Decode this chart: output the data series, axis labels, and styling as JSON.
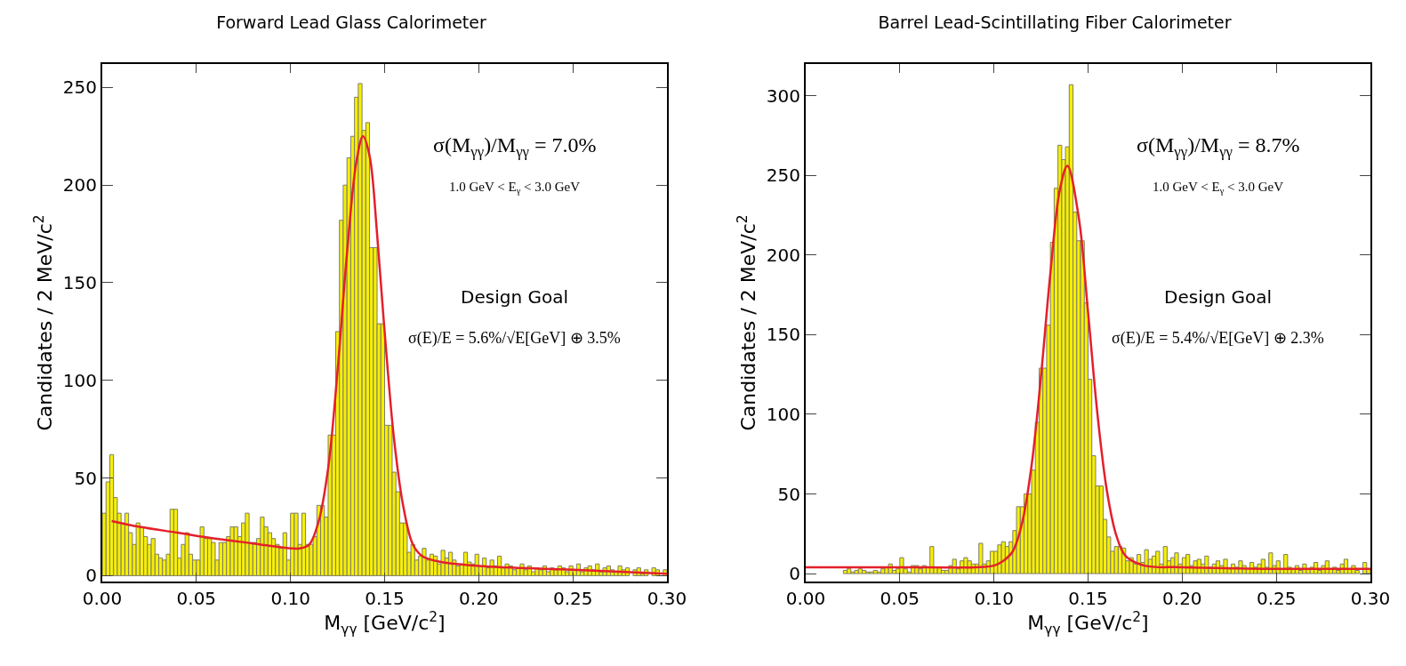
{
  "chart_data": [
    {
      "type": "histogram",
      "title": "Forward Lead Glass Calorimeter",
      "xlabel": "M$_{γγ}$ [GeV/c$^{2}$]",
      "ylabel": "Candidates / 2 MeV/c$^{2}$",
      "annotations": [
        "σ(M$_{γγ}$)/M$_{γγ}$ = 7.0%",
        "1.0 GeV < E$_{γ}$ < 3.0 GeV",
        "Design Goal",
        "σ(E)/E = 5.6%/√E[GeV] ⊕ 3.5%"
      ],
      "bins": [
        0,
        0.002,
        0.004,
        0.006,
        0.008,
        0.01,
        0.012,
        0.014,
        0.016,
        0.018,
        0.02,
        0.022,
        0.024,
        0.026,
        0.028,
        0.03,
        0.032,
        0.034,
        0.036,
        0.038,
        0.04,
        0.042,
        0.044,
        0.046,
        0.048,
        0.05,
        0.052,
        0.054,
        0.056,
        0.058,
        0.06,
        0.062,
        0.064,
        0.066,
        0.068,
        0.07,
        0.072,
        0.074,
        0.076,
        0.078,
        0.08,
        0.082,
        0.084,
        0.086,
        0.088,
        0.09,
        0.092,
        0.094,
        0.096,
        0.098,
        0.1,
        0.102,
        0.104,
        0.106,
        0.108,
        0.11,
        0.112,
        0.114,
        0.116,
        0.118,
        0.12,
        0.122,
        0.124,
        0.126,
        0.128,
        0.13,
        0.132,
        0.134,
        0.136,
        0.138,
        0.14,
        0.142,
        0.144,
        0.146,
        0.148,
        0.15,
        0.152,
        0.154,
        0.156,
        0.158,
        0.16,
        0.162,
        0.164,
        0.166,
        0.168,
        0.17,
        0.172,
        0.174,
        0.176,
        0.178,
        0.18,
        0.182,
        0.184,
        0.186,
        0.188,
        0.19,
        0.192,
        0.194,
        0.196,
        0.198,
        0.2,
        0.202,
        0.204,
        0.206,
        0.208,
        0.21,
        0.212,
        0.214,
        0.216,
        0.218,
        0.22,
        0.222,
        0.224,
        0.226,
        0.228,
        0.23,
        0.232,
        0.234,
        0.236,
        0.238,
        0.24,
        0.242,
        0.244,
        0.246,
        0.248,
        0.25,
        0.252,
        0.254,
        0.256,
        0.258,
        0.26,
        0.262,
        0.264,
        0.266,
        0.268,
        0.27,
        0.272,
        0.274,
        0.276,
        0.278,
        0.28,
        0.282,
        0.284,
        0.286,
        0.288,
        0.29,
        0.292,
        0.294,
        0.296,
        0.298,
        0.3
      ],
      "series": [
        {
          "type": "histogram",
          "color": "#f7ef00",
          "values": [
            32,
            48,
            62,
            40,
            32,
            27,
            32,
            22,
            16,
            27,
            25,
            20,
            16,
            19,
            11,
            9,
            8,
            11,
            34,
            34,
            9,
            16,
            22,
            11,
            8,
            8,
            25,
            19,
            19,
            17,
            8,
            17,
            17,
            20,
            25,
            25,
            20,
            27,
            32,
            17,
            17,
            19,
            30,
            25,
            22,
            19,
            16,
            14,
            22,
            8,
            32,
            32,
            16,
            32,
            16,
            16,
            20,
            36,
            36,
            30,
            72,
            72,
            125,
            182,
            200,
            214,
            225,
            245,
            252,
            228,
            232,
            168,
            168,
            129,
            129,
            77,
            77,
            53,
            43,
            27,
            27,
            12,
            16,
            8,
            10,
            14,
            8,
            11,
            10,
            6,
            13,
            9,
            12,
            8,
            5,
            6,
            12,
            7,
            6,
            11,
            5,
            9,
            4,
            8,
            5,
            10,
            4,
            6,
            5,
            3,
            4,
            6,
            3,
            5,
            2,
            4,
            3,
            5,
            2,
            4,
            3,
            5,
            4,
            2,
            5,
            3,
            6,
            2,
            4,
            5,
            3,
            6,
            2,
            4,
            5,
            3,
            2,
            5,
            3,
            4,
            null,
            3,
            4,
            1,
            3,
            null,
            4,
            3,
            null,
            3
          ]
        },
        {
          "type": "line",
          "color": "#e4202a",
          "x": [
            0.005,
            0.02,
            0.04,
            0.06,
            0.08,
            0.1,
            0.105,
            0.11,
            0.115,
            0.12,
            0.125,
            0.13,
            0.135,
            0.1385,
            0.142,
            0.146,
            0.15,
            0.155,
            0.16,
            0.165,
            0.17,
            0.18,
            0.2,
            0.25,
            0.3
          ],
          "values": [
            28,
            25,
            22,
            19,
            16.5,
            14,
            14,
            16,
            28,
            55,
            105,
            165,
            212,
            225,
            215,
            175,
            125,
            70,
            35,
            16,
            10,
            7,
            5,
            3,
            1
          ]
        }
      ],
      "xlim": [
        0,
        0.3
      ],
      "xticks": [
        {
          "value": 0,
          "label": "0.00"
        },
        {
          "value": 0.05,
          "label": "0.05"
        },
        {
          "value": 0.1,
          "label": "0.10"
        },
        {
          "value": 0.15,
          "label": "0.15"
        },
        {
          "value": 0.2,
          "label": "0.20"
        },
        {
          "value": 0.25,
          "label": "0.25"
        },
        {
          "value": 0.3,
          "label": "0.30"
        }
      ],
      "ylim": [
        -3,
        262
      ],
      "yticks": [
        0,
        50,
        100,
        150,
        200,
        250
      ]
    },
    {
      "type": "histogram",
      "title": "Barrel Lead-Scintillating Fiber Calorimeter",
      "xlabel": "M$_{γγ}$ [GeV/c$^{2}$]",
      "ylabel": "Candidates / 2 MeV/c$^{2}$",
      "annotations": [
        "σ(M$_{γγ}$)/M$_{γγ}$ = 8.7%",
        "1.0 GeV < E$_{γ}$ < 3.0 GeV",
        "Design Goal",
        "σ(E)/E = 5.4%/√E[GeV] ⊕ 2.3%"
      ],
      "bins": [
        0,
        0.002,
        0.004,
        0.006,
        0.008,
        0.01,
        0.012,
        0.014,
        0.016,
        0.018,
        0.02,
        0.022,
        0.024,
        0.026,
        0.028,
        0.03,
        0.032,
        0.034,
        0.036,
        0.038,
        0.04,
        0.042,
        0.044,
        0.046,
        0.048,
        0.05,
        0.052,
        0.054,
        0.056,
        0.058,
        0.06,
        0.062,
        0.064,
        0.066,
        0.068,
        0.07,
        0.072,
        0.074,
        0.076,
        0.078,
        0.08,
        0.082,
        0.084,
        0.086,
        0.088,
        0.09,
        0.092,
        0.094,
        0.096,
        0.098,
        0.1,
        0.102,
        0.104,
        0.106,
        0.108,
        0.11,
        0.112,
        0.114,
        0.116,
        0.118,
        0.12,
        0.122,
        0.124,
        0.126,
        0.128,
        0.13,
        0.132,
        0.134,
        0.136,
        0.138,
        0.14,
        0.142,
        0.144,
        0.146,
        0.148,
        0.15,
        0.152,
        0.154,
        0.156,
        0.158,
        0.16,
        0.162,
        0.164,
        0.166,
        0.168,
        0.17,
        0.172,
        0.174,
        0.176,
        0.178,
        0.18,
        0.182,
        0.184,
        0.186,
        0.188,
        0.19,
        0.192,
        0.194,
        0.196,
        0.198,
        0.2,
        0.202,
        0.204,
        0.206,
        0.208,
        0.21,
        0.212,
        0.214,
        0.216,
        0.218,
        0.22,
        0.222,
        0.224,
        0.226,
        0.228,
        0.23,
        0.232,
        0.234,
        0.236,
        0.238,
        0.24,
        0.242,
        0.244,
        0.246,
        0.248,
        0.25,
        0.252,
        0.254,
        0.256,
        0.258,
        0.26,
        0.262,
        0.264,
        0.266,
        0.268,
        0.27,
        0.272,
        0.274,
        0.276,
        0.278,
        0.28,
        0.282,
        0.284,
        0.286,
        0.288,
        0.29,
        0.292,
        0.294,
        0.296,
        0.298,
        0.3
      ],
      "series": [
        {
          "type": "histogram",
          "color": "#f7ef00",
          "values": [
            0,
            0,
            0,
            0,
            0,
            0,
            0,
            0,
            0,
            0,
            2,
            3,
            1,
            2,
            3,
            2,
            1,
            1,
            2,
            1,
            3,
            4,
            6,
            2,
            3,
            10,
            3,
            1,
            5,
            5,
            3,
            5,
            4,
            17,
            4,
            4,
            2,
            2,
            5,
            9,
            3,
            8,
            10,
            8,
            6,
            6,
            19,
            6,
            8,
            14,
            14,
            18,
            20,
            17,
            20,
            27,
            42,
            42,
            50,
            50,
            65,
            95,
            129,
            129,
            156,
            208,
            242,
            269,
            260,
            268,
            307,
            227,
            209,
            209,
            170,
            122,
            74,
            55,
            55,
            34,
            23,
            14,
            17,
            17,
            16,
            8,
            10,
            6,
            12,
            7,
            15,
            9,
            11,
            14,
            6,
            17,
            8,
            10,
            13,
            6,
            10,
            12,
            5,
            8,
            9,
            6,
            11,
            4,
            6,
            8,
            5,
            9,
            3,
            6,
            4,
            8,
            5,
            3,
            7,
            4,
            6,
            9,
            4,
            13,
            5,
            8,
            3,
            12,
            4,
            3,
            5,
            2,
            6,
            3,
            4,
            7,
            2,
            5,
            8,
            3,
            4,
            2,
            6,
            9,
            3,
            5,
            2,
            null,
            7,
            3
          ]
        },
        {
          "type": "line",
          "color": "#e4202a",
          "x": [
            0,
            0.05,
            0.09,
            0.1,
            0.105,
            0.11,
            0.115,
            0.12,
            0.125,
            0.13,
            0.135,
            0.139,
            0.145,
            0.15,
            0.155,
            0.16,
            0.165,
            0.17,
            0.18,
            0.2,
            0.25,
            0.3
          ],
          "values": [
            4,
            4,
            4,
            5,
            8,
            14,
            32,
            68,
            124,
            189,
            241,
            256,
            224,
            164,
            100,
            52,
            24,
            11,
            5,
            4,
            3,
            3
          ]
        }
      ],
      "xlim": [
        0,
        0.3
      ],
      "xticks": [
        {
          "value": 0,
          "label": "0.00"
        },
        {
          "value": 0.05,
          "label": "0.05"
        },
        {
          "value": 0.1,
          "label": "0.10"
        },
        {
          "value": 0.15,
          "label": "0.15"
        },
        {
          "value": 0.2,
          "label": "0.20"
        },
        {
          "value": 0.25,
          "label": "0.25"
        },
        {
          "value": 0.3,
          "label": "0.30"
        }
      ],
      "ylim": [
        -5,
        320
      ],
      "yticks": [
        0,
        50,
        100,
        150,
        200,
        250,
        300
      ]
    }
  ]
}
